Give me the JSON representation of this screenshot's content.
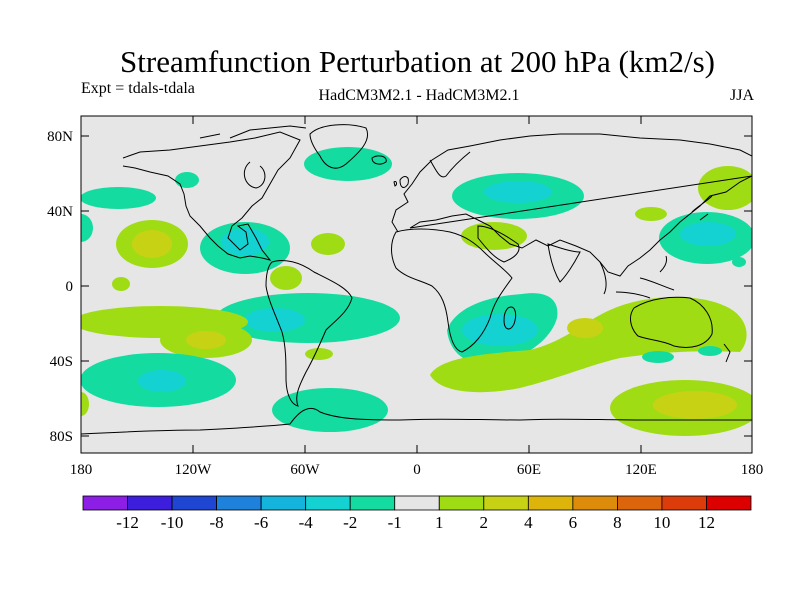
{
  "figure": {
    "title": "Streamfunction Perturbation at 200 hPa (km2/s)",
    "experiment_label": "Expt = tdals-tdala",
    "model_label": "HadCM3M2.1 - HadCM3M2.1",
    "season_label": "JJA"
  },
  "map": {
    "projection": "cylindrical equidistant",
    "lat_ticks": [
      "80N",
      "40N",
      "0",
      "40S",
      "80S"
    ],
    "lon_ticks": [
      "180",
      "120W",
      "60W",
      "0",
      "60E",
      "120E",
      "180"
    ],
    "background_color": "#e6e6e6",
    "coastline_color": "#000000"
  },
  "colorbar": {
    "colors": [
      "#8c1ee6",
      "#3c1edc",
      "#1e46d2",
      "#1e82dc",
      "#14b4dc",
      "#14d2d2",
      "#14dca0",
      "#e6e6e6",
      "#a0dc14",
      "#c8d214",
      "#dcb40a",
      "#dc8c0a",
      "#dc640a",
      "#dc3c0a",
      "#dc0000"
    ],
    "tick_labels": [
      "-12",
      "-10",
      "-8",
      "-6",
      "-4",
      "-2",
      "-1",
      "1",
      "2",
      "4",
      "6",
      "8",
      "10",
      "12"
    ]
  },
  "chart_data": {
    "type": "heatmap",
    "title": "Streamfunction Perturbation at 200 hPa (km2/s)",
    "variable": "streamfunction perturbation",
    "units": "km2/s",
    "level": "200 hPa",
    "season": "JJA",
    "contour_levels": [
      -12,
      -10,
      -8,
      -6,
      -4,
      -2,
      -1,
      1,
      2,
      4,
      6,
      8,
      10,
      12
    ],
    "x_range": [
      -180,
      180
    ],
    "y_range": [
      -90,
      90
    ],
    "anomalies": [
      {
        "region": "North Atlantic / Arctic",
        "sign": "negative",
        "range": "-2 to -1"
      },
      {
        "region": "Central Asia",
        "sign": "negative",
        "range": "-4 to -2"
      },
      {
        "region": "Caribbean / Gulf of Mexico",
        "sign": "negative",
        "range": "-4 to -2"
      },
      {
        "region": "Southern Africa / Madagascar",
        "sign": "negative",
        "range": "-4 to -2"
      },
      {
        "region": "Southeast Pacific",
        "sign": "negative",
        "range": "-4 to -2"
      },
      {
        "region": "South Pacific 140W",
        "sign": "negative",
        "range": "-4 to -2"
      },
      {
        "region": "Northwest Pacific",
        "sign": "negative",
        "range": "-4 to -2"
      },
      {
        "region": "Subtropical North Pacific",
        "sign": "positive",
        "range": "2 to 4"
      },
      {
        "region": "South Pacific 130W",
        "sign": "positive",
        "range": "2 to 4"
      },
      {
        "region": "Australia / Southern Ocean",
        "sign": "positive",
        "range": "2 to 4"
      },
      {
        "region": "Southern Indian Ocean",
        "sign": "positive",
        "range": "1 to 2"
      },
      {
        "region": "Middle East",
        "sign": "positive",
        "range": "1 to 2"
      }
    ]
  }
}
